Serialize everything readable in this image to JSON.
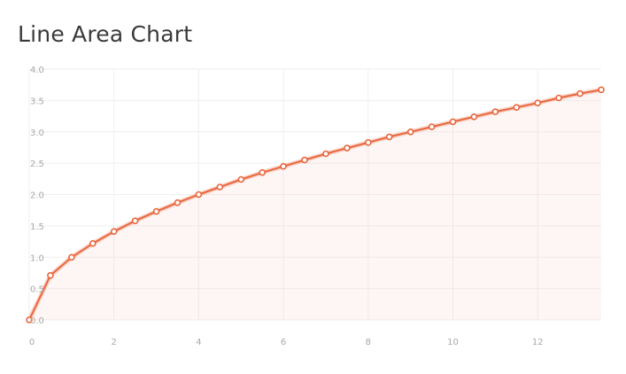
{
  "title": "Line Area Chart",
  "chart_data": {
    "type": "area",
    "title": "Line Area Chart",
    "xlabel": "",
    "ylabel": "",
    "xlim": [
      0,
      13.5
    ],
    "ylim": [
      0,
      4.0
    ],
    "x_ticks": [
      0,
      2,
      4,
      6,
      8,
      10,
      12
    ],
    "y_ticks": [
      0.0,
      0.5,
      1.0,
      1.5,
      2.0,
      2.5,
      3.0,
      3.5,
      4.0
    ],
    "x_tick_labels": [
      "0",
      "2",
      "4",
      "6",
      "8",
      "10",
      "12"
    ],
    "y_tick_labels": [
      "0.0",
      "0.5",
      "1.0",
      "1.5",
      "2.0",
      "2.5",
      "3.0",
      "3.5",
      "4.0"
    ],
    "grid": true,
    "series": [
      {
        "x": [
          0,
          0.5,
          1,
          1.5,
          2,
          2.5,
          3,
          3.5,
          4,
          4.5,
          5,
          5.5,
          6,
          6.5,
          7,
          7.5,
          8,
          8.5,
          9,
          9.5,
          10,
          10.5,
          11,
          11.5,
          12,
          12.5,
          13,
          13.5
        ],
        "y": [
          0.0,
          0.71,
          1.0,
          1.22,
          1.41,
          1.58,
          1.73,
          1.87,
          2.0,
          2.12,
          2.24,
          2.35,
          2.45,
          2.55,
          2.65,
          2.74,
          2.83,
          2.92,
          3.0,
          3.08,
          3.16,
          3.24,
          3.32,
          3.39,
          3.46,
          3.54,
          3.61,
          3.67
        ]
      }
    ],
    "colors": {
      "line": "#e8663d",
      "area": "#f3b6a1",
      "grid": "#efefef",
      "point_fill": "#ffffff"
    }
  }
}
